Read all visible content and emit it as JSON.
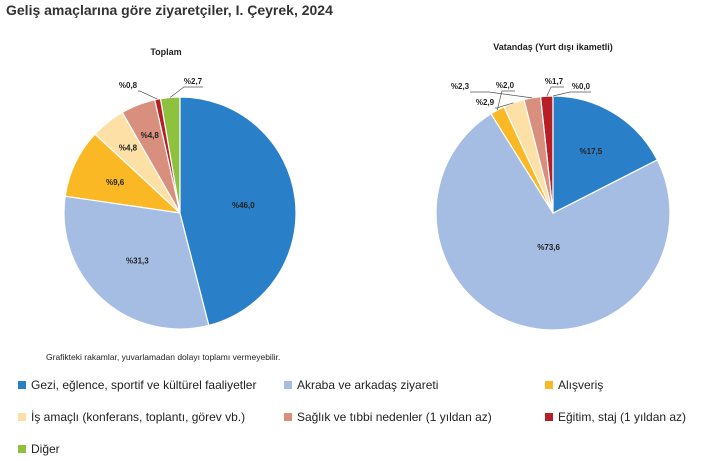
{
  "title": "Geliş amaçlarına göre ziyaretçiler, I. Çeyrek, 2024",
  "note": "Grafikteki rakamlar, yuvarlamadan dolayı toplamı vermeyebilir.",
  "legend": [
    {
      "label": "Gezi, eğlence, sportif ve kültürel faaliyetler",
      "color": "#2a7fc9"
    },
    {
      "label": "Akraba ve arkadaş ziyareti",
      "color": "#a5bde3"
    },
    {
      "label": "Alışveriş",
      "color": "#fbb825"
    },
    {
      "label": "İş amaçlı (konferans, toplantı, görev vb.)",
      "color": "#fde0a6"
    },
    {
      "label": "Sağlık ve tıbbi nedenler (1 yıldan az)",
      "color": "#d88f7e"
    },
    {
      "label": "Eğitim, staj (1 yıldan az)",
      "color": "#b81e26"
    },
    {
      "label": "Diğer",
      "color": "#8ec13e"
    }
  ],
  "chart_data": [
    {
      "type": "pie",
      "title": "Toplam",
      "categories": [
        "Gezi, eğlence, sportif ve kültürel faaliyetler",
        "Akraba ve arkadaş ziyareti",
        "Alışveriş",
        "İş amaçlı (konferans, toplantı, görev vb.)",
        "Sağlık ve tıbbi nedenler (1 yıldan az)",
        "Eğitim, staj (1 yıldan az)",
        "Diğer"
      ],
      "values": [
        46.0,
        31.3,
        9.6,
        4.8,
        4.8,
        0.8,
        2.7
      ],
      "labels": [
        "%46,0",
        "%31,3",
        "%9,6",
        "%4,8",
        "%4,8",
        "%0,8",
        "%2,7"
      ]
    },
    {
      "type": "pie",
      "title": "Vatandaş (Yurt dışı ikametli)",
      "categories": [
        "Gezi, eğlence, sportif ve kültürel faaliyetler",
        "Akraba ve arkadaş ziyareti",
        "Alışveriş",
        "İş amaçlı (konferans, toplantı, görev vb.)",
        "Sağlık ve tıbbi nedenler (1 yıldan az)",
        "Eğitim, staj (1 yıldan az)",
        "Diğer"
      ],
      "values": [
        17.5,
        73.6,
        2.0,
        2.9,
        2.3,
        1.7,
        0.0
      ],
      "labels": [
        "%17,5",
        "%73,6",
        "%2,0",
        "%2,9",
        "%2,3",
        "%1,7",
        "%0,0"
      ]
    }
  ]
}
